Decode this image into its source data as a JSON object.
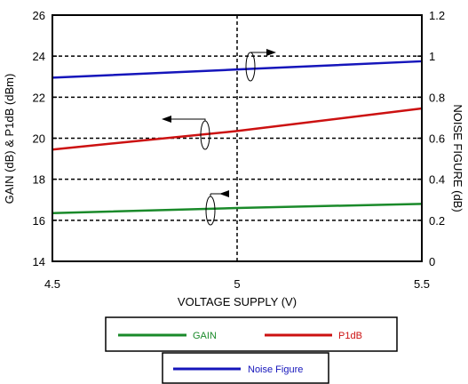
{
  "chart_data": {
    "type": "line",
    "title": "",
    "x": [
      4.5,
      5,
      5.5
    ],
    "xlabel": "VOLTAGE SUPPLY (V)",
    "xlim": [
      4.5,
      5.5
    ],
    "xticks": [
      "4.5",
      "5",
      "5.5"
    ],
    "ylabel_left": "GAIN (dB) & P1dB (dBm)",
    "ylim_left": [
      14,
      26
    ],
    "yticks_left": [
      "14",
      "16",
      "18",
      "20",
      "22",
      "24",
      "26"
    ],
    "ylabel_right": "NOISE FIGURE (dB)",
    "ylim_right": [
      0,
      1.2
    ],
    "yticks_right": [
      "0",
      "0.2",
      "0.4",
      "0.6",
      "0.8",
      "1",
      "1.2"
    ],
    "grid": "dashed",
    "series": [
      {
        "name": "GAIN",
        "axis": "left",
        "color": "#1a8a2a",
        "values": [
          16.35,
          16.6,
          16.8
        ]
      },
      {
        "name": "P1dB",
        "axis": "left",
        "color": "#cc1111",
        "values": [
          19.45,
          20.35,
          21.45
        ]
      },
      {
        "name": "Noise Figure",
        "axis": "right",
        "color": "#1515bb",
        "values": [
          0.895,
          0.935,
          0.975
        ]
      }
    ],
    "legend_position": "bottom"
  }
}
